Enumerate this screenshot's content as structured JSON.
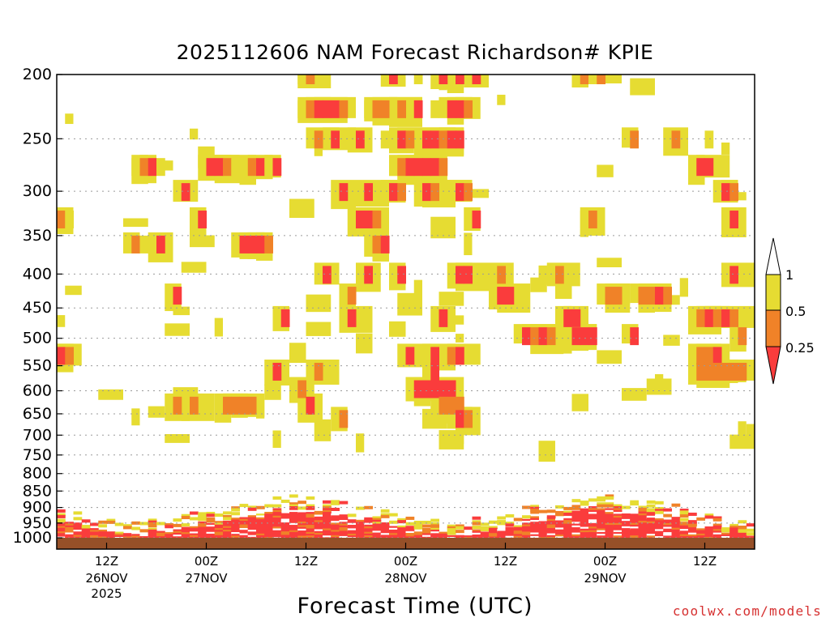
{
  "chart_data": {
    "type": "heatmap",
    "title": "2025112606 NAM Forecast Richardson# KPIE",
    "xlabel": "Forecast Time (UTC)",
    "ylabel": "",
    "y_ticks": [
      "200",
      "250",
      "300",
      "350",
      "400",
      "450",
      "500",
      "550",
      "600",
      "650",
      "700",
      "750",
      "800",
      "850",
      "900",
      "950",
      "1000"
    ],
    "x_ticks": [
      {
        "label": "12Z",
        "sub": [
          "26NOV",
          "2025"
        ],
        "hour": 12
      },
      {
        "label": "00Z",
        "sub": [
          "27NOV"
        ],
        "hour": 24
      },
      {
        "label": "12Z",
        "sub": [],
        "hour": 36
      },
      {
        "label": "00Z",
        "sub": [
          "28NOV"
        ],
        "hour": 48
      },
      {
        "label": "12Z",
        "sub": [],
        "hour": 60
      },
      {
        "label": "00Z",
        "sub": [
          "29NOV"
        ],
        "hour": 72
      },
      {
        "label": "12Z",
        "sub": [],
        "hour": 84
      }
    ],
    "x_range_hours": [
      6,
      90
    ],
    "colorbar": {
      "levels": [
        "1",
        "0.5",
        "0.25"
      ],
      "colors": {
        "high": "#e6dc32",
        "mid": "#f08228",
        "low": "#fa3c3c"
      }
    },
    "ground_color": "#965028",
    "cells": [
      [
        200,
        29,
        1
      ],
      [
        200,
        30,
        2
      ],
      [
        200,
        40,
        3
      ],
      [
        200,
        43,
        1
      ],
      [
        200,
        46,
        3
      ],
      [
        200,
        48,
        3
      ],
      [
        200,
        50,
        3
      ],
      [
        200,
        62,
        1
      ],
      [
        200,
        63,
        2
      ],
      [
        200,
        64,
        1
      ],
      [
        200,
        65,
        2
      ],
      [
        225,
        29,
        1
      ],
      [
        225,
        30,
        2
      ],
      [
        225,
        31,
        3
      ],
      [
        225,
        32,
        3
      ],
      [
        225,
        33,
        3
      ],
      [
        225,
        34,
        2
      ],
      [
        225,
        37,
        1
      ],
      [
        225,
        38,
        2
      ],
      [
        225,
        39,
        2
      ],
      [
        225,
        41,
        2
      ],
      [
        225,
        43,
        3
      ],
      [
        225,
        45,
        1
      ],
      [
        225,
        47,
        3
      ],
      [
        225,
        48,
        3
      ],
      [
        225,
        49,
        2
      ],
      [
        250,
        30,
        1
      ],
      [
        250,
        31,
        2
      ],
      [
        250,
        33,
        3
      ],
      [
        250,
        36,
        3
      ],
      [
        250,
        39,
        1
      ],
      [
        250,
        41,
        3
      ],
      [
        250,
        42,
        2
      ],
      [
        250,
        44,
        3
      ],
      [
        250,
        45,
        3
      ],
      [
        250,
        46,
        2
      ],
      [
        250,
        47,
        3
      ],
      [
        250,
        48,
        3
      ],
      [
        250,
        69,
        2
      ],
      [
        250,
        74,
        2
      ],
      [
        250,
        78,
        1
      ],
      [
        275,
        9,
        1
      ],
      [
        275,
        10,
        2
      ],
      [
        275,
        11,
        3
      ],
      [
        275,
        12,
        1
      ],
      [
        275,
        18,
        3
      ],
      [
        275,
        19,
        3
      ],
      [
        275,
        20,
        2
      ],
      [
        275,
        21,
        1
      ],
      [
        275,
        23,
        2
      ],
      [
        275,
        24,
        3
      ],
      [
        275,
        25,
        1
      ],
      [
        275,
        26,
        3
      ],
      [
        275,
        40,
        1
      ],
      [
        275,
        41,
        2
      ],
      [
        275,
        42,
        3
      ],
      [
        275,
        43,
        3
      ],
      [
        275,
        44,
        3
      ],
      [
        275,
        45,
        3
      ],
      [
        275,
        46,
        2
      ],
      [
        275,
        77,
        3
      ],
      [
        275,
        78,
        3
      ],
      [
        300,
        15,
        3
      ],
      [
        300,
        34,
        3
      ],
      [
        300,
        37,
        3
      ],
      [
        300,
        39,
        1
      ],
      [
        300,
        40,
        3
      ],
      [
        300,
        41,
        2
      ],
      [
        300,
        44,
        3
      ],
      [
        300,
        45,
        2
      ],
      [
        300,
        48,
        3
      ],
      [
        300,
        49,
        2
      ],
      [
        300,
        80,
        3
      ],
      [
        300,
        81,
        2
      ],
      [
        330,
        0,
        2
      ],
      [
        330,
        1,
        1
      ],
      [
        330,
        17,
        3
      ],
      [
        330,
        36,
        3
      ],
      [
        330,
        37,
        3
      ],
      [
        330,
        38,
        2
      ],
      [
        330,
        50,
        3
      ],
      [
        330,
        63,
        1
      ],
      [
        330,
        64,
        2
      ],
      [
        330,
        81,
        3
      ],
      [
        360,
        9,
        2
      ],
      [
        360,
        10,
        1
      ],
      [
        360,
        12,
        3
      ],
      [
        360,
        22,
        3
      ],
      [
        360,
        23,
        3
      ],
      [
        360,
        24,
        3
      ],
      [
        360,
        25,
        2
      ],
      [
        360,
        38,
        2
      ],
      [
        360,
        39,
        3
      ],
      [
        400,
        32,
        3
      ],
      [
        400,
        37,
        3
      ],
      [
        400,
        41,
        3
      ],
      [
        400,
        48,
        3
      ],
      [
        400,
        49,
        3
      ],
      [
        400,
        53,
        2
      ],
      [
        400,
        60,
        2
      ],
      [
        400,
        81,
        3
      ],
      [
        430,
        14,
        3
      ],
      [
        430,
        35,
        2
      ],
      [
        430,
        53,
        3
      ],
      [
        430,
        54,
        3
      ],
      [
        430,
        66,
        2
      ],
      [
        430,
        67,
        2
      ],
      [
        430,
        70,
        2
      ],
      [
        430,
        71,
        2
      ],
      [
        430,
        72,
        3
      ],
      [
        430,
        73,
        2
      ],
      [
        465,
        27,
        3
      ],
      [
        465,
        35,
        3
      ],
      [
        465,
        46,
        3
      ],
      [
        465,
        61,
        3
      ],
      [
        465,
        62,
        3
      ],
      [
        465,
        77,
        2
      ],
      [
        465,
        78,
        3
      ],
      [
        465,
        79,
        2
      ],
      [
        465,
        80,
        3
      ],
      [
        465,
        81,
        2
      ],
      [
        495,
        56,
        3
      ],
      [
        495,
        57,
        2
      ],
      [
        495,
        58,
        3
      ],
      [
        495,
        59,
        2
      ],
      [
        495,
        62,
        3
      ],
      [
        495,
        63,
        3
      ],
      [
        495,
        64,
        3
      ],
      [
        495,
        69,
        3
      ],
      [
        495,
        82,
        2
      ],
      [
        530,
        0,
        3
      ],
      [
        530,
        1,
        2
      ],
      [
        530,
        42,
        3
      ],
      [
        530,
        45,
        3
      ],
      [
        530,
        47,
        2
      ],
      [
        530,
        48,
        3
      ],
      [
        530,
        77,
        2
      ],
      [
        530,
        78,
        2
      ],
      [
        530,
        79,
        3
      ],
      [
        560,
        26,
        3
      ],
      [
        560,
        31,
        2
      ],
      [
        560,
        45,
        3
      ],
      [
        560,
        77,
        2
      ],
      [
        560,
        78,
        2
      ],
      [
        560,
        79,
        2
      ],
      [
        560,
        80,
        2
      ],
      [
        560,
        81,
        2
      ],
      [
        560,
        82,
        2
      ],
      [
        595,
        29,
        2
      ],
      [
        595,
        43,
        3
      ],
      [
        595,
        44,
        3
      ],
      [
        595,
        45,
        3
      ],
      [
        595,
        46,
        3
      ],
      [
        595,
        47,
        3
      ],
      [
        630,
        14,
        2
      ],
      [
        630,
        16,
        2
      ],
      [
        630,
        20,
        2
      ],
      [
        630,
        21,
        2
      ],
      [
        630,
        22,
        2
      ],
      [
        630,
        23,
        2
      ],
      [
        630,
        30,
        3
      ],
      [
        630,
        46,
        2
      ],
      [
        630,
        47,
        2
      ],
      [
        630,
        48,
        2
      ],
      [
        660,
        34,
        2
      ],
      [
        660,
        48,
        3
      ],
      [
        660,
        49,
        2
      ]
    ]
  }
}
